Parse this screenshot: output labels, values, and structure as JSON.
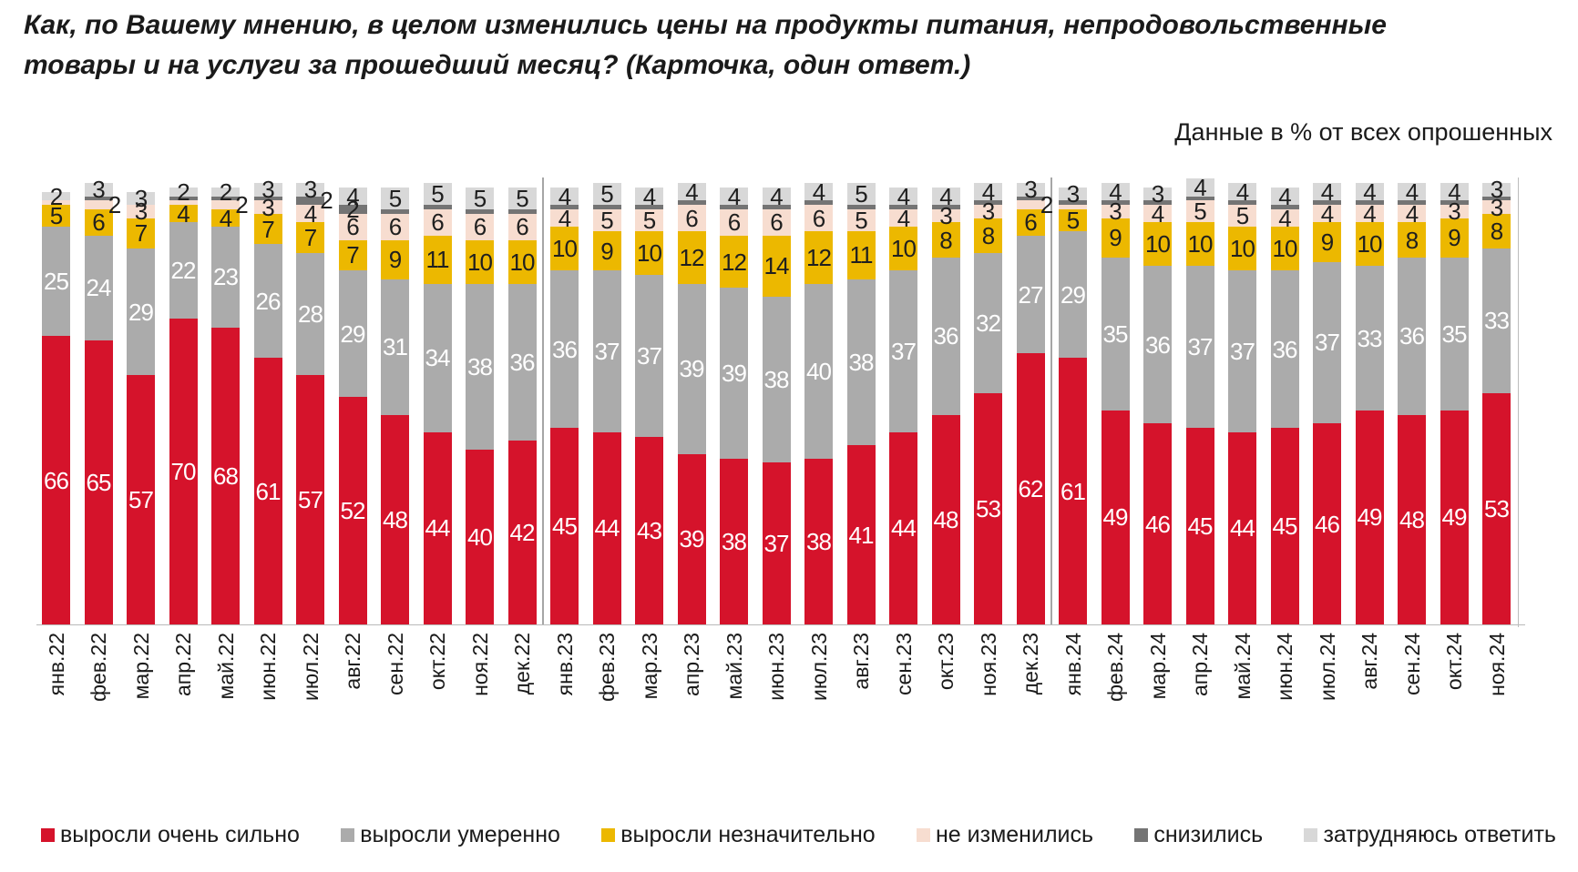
{
  "title": {
    "line1": "Как, по Вашему мнению, в целом изменились цены на продукты питания, непродовольственные",
    "line2": "товары и на услуги за прошедший месяц? (Карточка, один ответ.)"
  },
  "note": "Данные в % от всех опрошенных",
  "chart_data": {
    "type": "bar",
    "subtype": "stacked-100-percent",
    "unit": "% от всех опрошенных",
    "legend_position": "bottom",
    "grid": false,
    "categories": [
      "янв.22",
      "фев.22",
      "мар.22",
      "апр.22",
      "май.22",
      "июн.22",
      "июл.22",
      "авг.22",
      "сен.22",
      "окт.22",
      "ноя.22",
      "дек.22",
      "янв.23",
      "фев.23",
      "мар.23",
      "апр.23",
      "май.23",
      "июн.23",
      "июл.23",
      "авг.23",
      "сен.23",
      "окт.23",
      "ноя.23",
      "дек.23",
      "янв.24",
      "фев.24",
      "мар.24",
      "апр.24",
      "май.24",
      "июн.24",
      "июл.24",
      "авг.24",
      "сен.24",
      "окт.24",
      "ноя.24"
    ],
    "series": [
      {
        "name": "выросли очень сильно",
        "color": "#d5132b",
        "text_color": "#ffffff",
        "values": [
          66,
          65,
          57,
          70,
          68,
          61,
          57,
          52,
          48,
          44,
          40,
          42,
          45,
          44,
          43,
          39,
          38,
          37,
          38,
          41,
          44,
          48,
          53,
          62,
          61,
          49,
          46,
          45,
          44,
          45,
          46,
          49,
          48,
          49,
          53
        ]
      },
      {
        "name": "выросли умеренно",
        "color": "#ababab",
        "text_color": "#ffffff",
        "values": [
          25,
          24,
          29,
          22,
          23,
          26,
          28,
          29,
          31,
          34,
          38,
          36,
          36,
          37,
          37,
          39,
          39,
          38,
          40,
          38,
          37,
          36,
          32,
          27,
          29,
          35,
          36,
          37,
          37,
          36,
          37,
          33,
          36,
          35,
          33
        ]
      },
      {
        "name": "выросли незначительно",
        "color": "#ecb800",
        "text_color": "#1f1f1f",
        "values": [
          5,
          6,
          7,
          4,
          4,
          7,
          7,
          7,
          9,
          11,
          10,
          10,
          10,
          9,
          10,
          12,
          12,
          14,
          12,
          11,
          10,
          8,
          8,
          6,
          5,
          9,
          10,
          10,
          10,
          10,
          9,
          10,
          8,
          9,
          8
        ]
      },
      {
        "name": "не изменились",
        "color": "#f7ddd0",
        "text_color": "#1f1f1f",
        "values": [
          1,
          2,
          3,
          1,
          2,
          3,
          4,
          6,
          6,
          6,
          6,
          6,
          4,
          5,
          5,
          6,
          6,
          6,
          6,
          5,
          4,
          3,
          3,
          2,
          1,
          3,
          4,
          5,
          5,
          4,
          4,
          4,
          4,
          3,
          3
        ],
        "hidden_value_labels": [
          0,
          3,
          24
        ]
      },
      {
        "name": "снизились",
        "color": "#747474",
        "text_color": "#1f1f1f",
        "values": [
          0,
          1,
          0,
          1,
          1,
          1,
          2,
          2,
          1,
          1,
          1,
          1,
          1,
          1,
          1,
          1,
          1,
          1,
          1,
          1,
          1,
          1,
          1,
          1,
          1,
          1,
          1,
          1,
          1,
          1,
          1,
          1,
          1,
          1,
          1
        ],
        "visible_value_labels": [
          6,
          7
        ]
      },
      {
        "name": "затрудняюсь ответить",
        "color": "#d8d8d8",
        "text_color": "#1f1f1f",
        "values": [
          2,
          3,
          3,
          2,
          2,
          3,
          3,
          4,
          5,
          5,
          5,
          5,
          4,
          5,
          4,
          4,
          4,
          4,
          4,
          5,
          4,
          4,
          4,
          3,
          3,
          4,
          3,
          4,
          4,
          4,
          4,
          4,
          4,
          4,
          3
        ]
      }
    ],
    "right_offset_labels": [
      [
        1,
        3
      ],
      [
        4,
        3
      ],
      [
        6,
        4
      ],
      [
        23,
        3
      ]
    ],
    "year_separators_after": [
      "дек.22",
      "дек.23"
    ]
  }
}
